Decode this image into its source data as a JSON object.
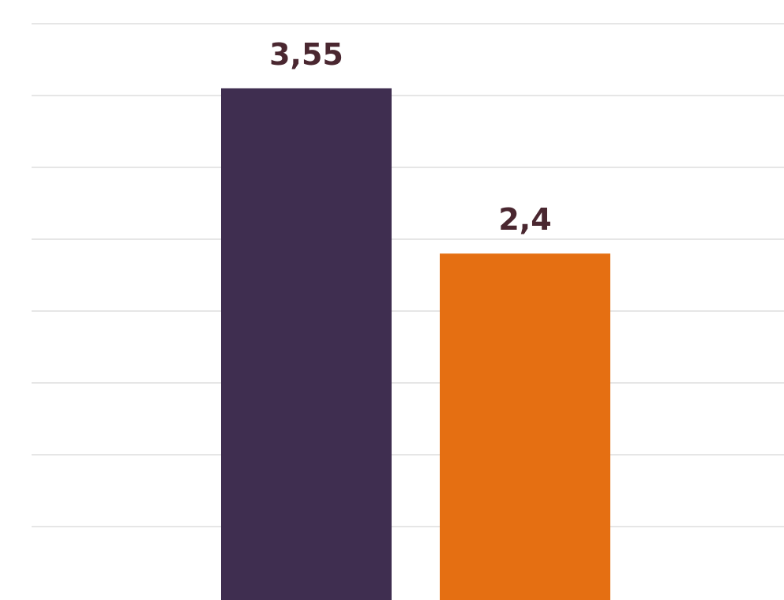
{
  "chart_data": {
    "type": "bar",
    "categories": [
      "",
      ""
    ],
    "values": [
      3.55,
      2.4
    ],
    "value_labels": [
      "3,55",
      "2,4"
    ],
    "colors": [
      "#3f2e50",
      "#e56f12"
    ],
    "label_color": "#4a2730",
    "ylim": [
      0,
      4
    ],
    "grid": true,
    "legend": "none",
    "title": "",
    "xlabel": "",
    "ylabel": ""
  }
}
